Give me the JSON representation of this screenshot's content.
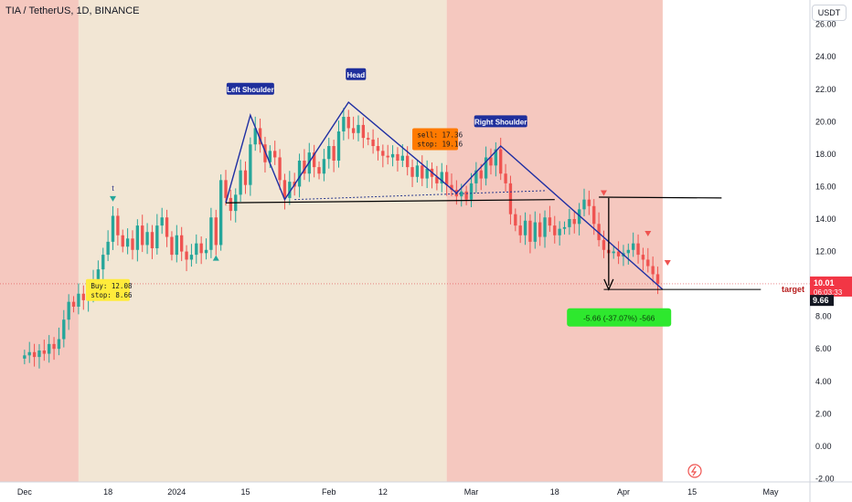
{
  "header": {
    "title": "TIA / TetherUS, 1D, BINANCE",
    "currency": "USDT"
  },
  "chart_data": {
    "type": "candlestick",
    "title": "TIA / TetherUS, 1D, BINANCE",
    "y_ticks": [
      "-2.00",
      "0.00",
      "2.00",
      "4.00",
      "6.00",
      "8.00",
      "10.00",
      "12.00",
      "14.00",
      "16.00",
      "18.00",
      "20.00",
      "22.00",
      "24.00",
      "26.00"
    ],
    "y_tick_values": [
      -2,
      0,
      2,
      4,
      6,
      8,
      10,
      12,
      14,
      16,
      18,
      20,
      22,
      24,
      26
    ],
    "x_ticks": [
      {
        "label": "Dec",
        "day": 0
      },
      {
        "label": "18",
        "day": 17
      },
      {
        "label": "2024",
        "day": 31
      },
      {
        "label": "15",
        "day": 45
      },
      {
        "label": "Feb",
        "day": 62
      },
      {
        "label": "12",
        "day": 73
      },
      {
        "label": "Mar",
        "day": 91
      },
      {
        "label": "18",
        "day": 108
      },
      {
        "label": "Apr",
        "day": 122
      },
      {
        "label": "15",
        "day": 136
      },
      {
        "label": "May",
        "day": 152
      }
    ],
    "ylim": [
      -2.2,
      27.5
    ],
    "xlim": [
      -5,
      160
    ],
    "last_price": "10.01",
    "countdown": "06:03:33",
    "low_label": "9.66",
    "target_label": "target",
    "levels": {
      "neckline_solid": 15.0,
      "resistance": 15.3,
      "target": 9.66
    },
    "shade_regions": [
      {
        "from": -5,
        "to": 11,
        "color": "#f5c8bf"
      },
      {
        "from": 11,
        "to": 86,
        "color": "#f2e6d4"
      },
      {
        "from": 86,
        "to": 130,
        "color": "#f5c8bf"
      }
    ],
    "annotations": {
      "left_shoulder": "Left Shoulder",
      "head": "Head",
      "right_shoulder": "Right Shoulder",
      "buy_line1": "Buy: 12.08",
      "buy_line2": "stop: 8.66",
      "sell_line1": "sell: 17.36",
      "sell_line2": "stop: 19.16",
      "measure": "-5.66 (-37.07%) -566",
      "signal_t": "t"
    },
    "closes": [
      5.6,
      5.8,
      5.5,
      5.9,
      5.7,
      6.3,
      6.0,
      6.6,
      7.8,
      8.9,
      8.6,
      9.4,
      9.0,
      9.3,
      10.2,
      10.9,
      11.8,
      12.6,
      14.2,
      13.0,
      12.3,
      12.8,
      12.1,
      13.6,
      12.4,
      13.2,
      12.2,
      13.6,
      14.1,
      12.9,
      11.8,
      13.0,
      12.0,
      11.5,
      11.8,
      12.5,
      11.9,
      12.1,
      14.1,
      12.4,
      16.4,
      15.3,
      14.5,
      15.5,
      17.0,
      16.1,
      18.6,
      19.6,
      18.6,
      17.5,
      18.2,
      17.8,
      16.4,
      15.3,
      16.3,
      16.0,
      17.6,
      16.8,
      18.1,
      17.2,
      16.8,
      17.7,
      18.5,
      17.6,
      19.4,
      20.3,
      19.6,
      19.3,
      19.8,
      19.0,
      18.9,
      18.5,
      18.2,
      17.9,
      17.8,
      18.0,
      17.6,
      17.9,
      17.2,
      16.6,
      17.3,
      16.5,
      17.1,
      16.6,
      16.2,
      16.9,
      16.1,
      15.8,
      15.4,
      15.7,
      15.2,
      16.2,
      17.0,
      16.5,
      17.8,
      17.3,
      18.3,
      16.8,
      16.2,
      14.3,
      13.6,
      13.0,
      13.9,
      12.6,
      13.8,
      12.9,
      14.1,
      13.6,
      13.0,
      13.4,
      13.5,
      14.0,
      13.7,
      14.6,
      15.2,
      14.8,
      13.7,
      12.7,
      12.1,
      11.9,
      12.0,
      11.7,
      11.9,
      12.1,
      12.5,
      11.8,
      11.5,
      11.1,
      10.6,
      10.01
    ]
  }
}
